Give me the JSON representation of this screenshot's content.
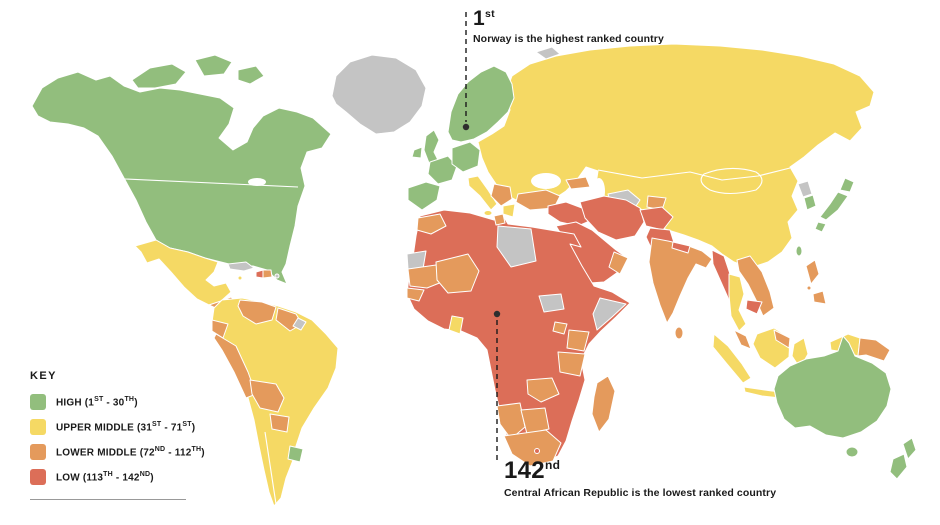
{
  "colors": {
    "high": "#92BE7D",
    "upper_middle": "#F5D964",
    "lower_middle": "#E49A5C",
    "low": "#DC6E58",
    "no_data": "#C4C4C4",
    "ink": "#1A1A1A",
    "background": "#FFFFFF",
    "rule": "#999999"
  },
  "annotations": {
    "top": {
      "rank": "1",
      "suffix": "st",
      "caption": "Norway is the highest ranked country"
    },
    "bottom": {
      "rank": "142",
      "suffix": "nd",
      "caption": "Central African Republic is the lowest ranked country"
    }
  },
  "legend": {
    "title": "KEY",
    "items": [
      {
        "color_key": "high",
        "parts": [
          [
            "t",
            "HIGH (1"
          ],
          [
            "s",
            "ST"
          ],
          [
            "t",
            " - 30"
          ],
          [
            "s",
            "TH"
          ],
          [
            "t",
            ")"
          ]
        ]
      },
      {
        "color_key": "upper_middle",
        "parts": [
          [
            "t",
            "UPPER MIDDLE (31"
          ],
          [
            "s",
            "ST"
          ],
          [
            "t",
            " - 71"
          ],
          [
            "s",
            "ST"
          ],
          [
            "t",
            ")"
          ]
        ]
      },
      {
        "color_key": "lower_middle",
        "parts": [
          [
            "t",
            "LOWER MIDDLE (72"
          ],
          [
            "s",
            "ND"
          ],
          [
            "t",
            " - 112"
          ],
          [
            "s",
            "TH"
          ],
          [
            "t",
            ")"
          ]
        ]
      },
      {
        "color_key": "low",
        "parts": [
          [
            "t",
            "LOW (113"
          ],
          [
            "s",
            "TH"
          ],
          [
            "t",
            " - 142"
          ],
          [
            "s",
            "ND"
          ],
          [
            "t",
            ")"
          ]
        ]
      }
    ]
  },
  "map": {
    "regions": {
      "north-america": "high",
      "arctic-island-1": "high",
      "arctic-island-2": "high",
      "arctic-island-3": "high",
      "greenland": "no_data",
      "svalbard": "no_data",
      "iceland": "high",
      "mexico": "upper_middle",
      "central-america": "lower_middle",
      "costa-rica-panama": "upper_middle",
      "cuba": "no_data",
      "jamaica": "upper_middle",
      "haiti": "low",
      "dominican-republic": "lower_middle",
      "puerto-rico": "no_data",
      "south-america": "upper_middle",
      "venezuela": "lower_middle",
      "guyanas": "lower_middle",
      "french-guiana": "no_data",
      "ecuador": "lower_middle",
      "peru": "lower_middle",
      "bolivia": "lower_middle",
      "paraguay": "lower_middle",
      "uruguay": "high",
      "united-kingdom": "high",
      "ireland": "high",
      "scandinavia": "high",
      "denmark": "high",
      "france": "high",
      "iberia": "high",
      "central-europe": "high",
      "italy": "upper_middle",
      "sicily": "upper_middle",
      "balkans": "lower_middle",
      "greece": "upper_middle",
      "north-asia": "upper_middle",
      "caucasus": "lower_middle",
      "turkmenistan": "no_data",
      "tajikistan-kyrgyzstan": "lower_middle",
      "turkey": "lower_middle",
      "levant-iraq": "low",
      "arabia": "low",
      "oman": "lower_middle",
      "iran": "low",
      "afghanistan": "low",
      "pakistan": "low",
      "india": "lower_middle",
      "nepal": "low",
      "sri-lanka": "lower_middle",
      "myanmar": "low",
      "thailand": "upper_middle",
      "laos-vietnam": "lower_middle",
      "cambodia": "low",
      "malaysia": "lower_middle",
      "sumatra": "upper_middle",
      "java": "upper_middle",
      "borneo": "upper_middle",
      "sulawesi": "upper_middle",
      "lesser-sunda": "upper_middle",
      "maluku": "upper_middle",
      "new-guinea-west": "upper_middle",
      "papua-new-guinea": "lower_middle",
      "philippines-north": "lower_middle",
      "philippines-south": "lower_middle",
      "taiwan": "high",
      "north-korea": "no_data",
      "south-korea": "high",
      "japan-hokkaido": "high",
      "japan-honshu": "high",
      "japan-kyushu": "high",
      "africa": "low",
      "morocco": "lower_middle",
      "tunisia": "lower_middle",
      "western-sahara": "no_data",
      "mauritania": "lower_middle",
      "mali": "lower_middle",
      "senegal": "lower_middle",
      "ghana": "upper_middle",
      "libya": "no_data",
      "south-sudan": "no_data",
      "somalia": "no_data",
      "kenya": "lower_middle",
      "uganda": "lower_middle",
      "tanzania": "lower_middle",
      "zambia": "lower_middle",
      "namibia": "lower_middle",
      "botswana": "lower_middle",
      "south-africa": "lower_middle",
      "lesotho": "low",
      "madagascar": "lower_middle",
      "australia": "high",
      "tasmania": "high",
      "new-zealand-north": "high",
      "new-zealand-south": "high"
    }
  }
}
